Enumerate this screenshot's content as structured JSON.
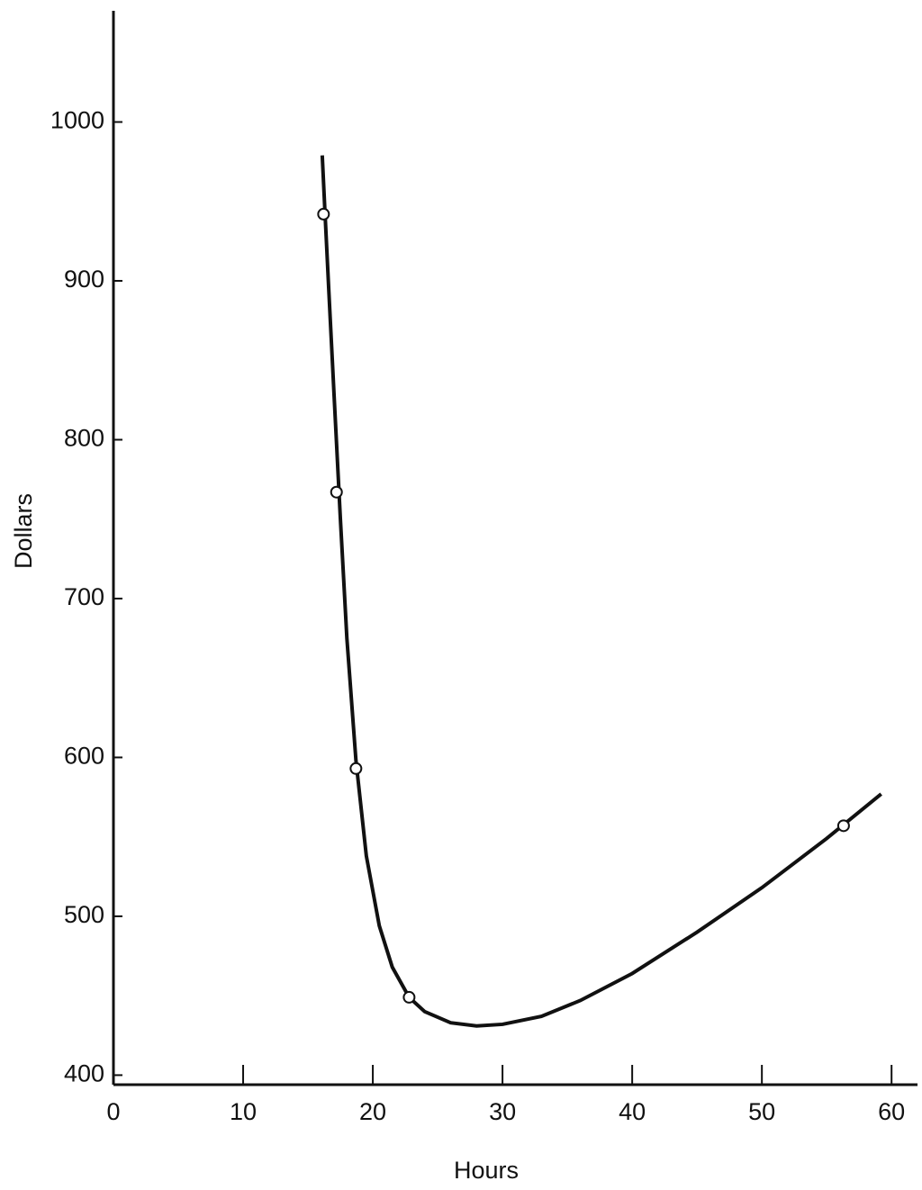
{
  "chart_data": {
    "type": "line",
    "x_label": "Hours",
    "y_label": "Dollars",
    "xlim": [
      0,
      62
    ],
    "ylim": [
      394,
      1070
    ],
    "xticks": [
      0,
      10,
      20,
      30,
      40,
      50,
      60
    ],
    "yticks": [
      400,
      500,
      600,
      700,
      800,
      900,
      1000
    ],
    "color": "#111111",
    "points": {
      "x": [
        16.2,
        17.2,
        18.7,
        22.8,
        56.3
      ],
      "values": [
        942,
        767,
        593,
        449,
        557
      ]
    },
    "curve": {
      "x": [
        16.1,
        16.3,
        16.6,
        17,
        17.5,
        18,
        18.7,
        19.5,
        20.5,
        21.5,
        22.8,
        24,
        26,
        28,
        30,
        33,
        36,
        40,
        45,
        50,
        55,
        59.2
      ],
      "values": [
        979,
        945,
        895,
        830,
        750,
        675,
        598,
        538,
        494,
        468,
        449,
        440,
        433,
        431,
        432,
        437,
        447,
        464,
        490,
        518,
        549,
        577
      ]
    }
  }
}
